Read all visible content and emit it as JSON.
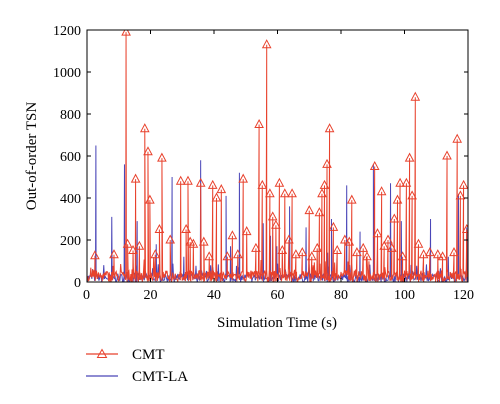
{
  "chart_data": {
    "type": "line",
    "xlabel": "Simulation Time (s)",
    "ylabel": "Out-of-order TSN",
    "xlim": [
      0,
      120
    ],
    "ylim": [
      0,
      1200
    ],
    "xticks": [
      0,
      20,
      40,
      60,
      80,
      100,
      120
    ],
    "yticks": [
      0,
      200,
      400,
      600,
      800,
      1000,
      1200
    ],
    "grid": false,
    "legend_position": "below-left",
    "series": [
      {
        "name": "CMT",
        "color": "#e8412c",
        "marker": "triangle-open",
        "spikes": [
          {
            "x": 2.5,
            "y": 125
          },
          {
            "x": 8.5,
            "y": 130
          },
          {
            "x": 12.3,
            "y": 1190
          },
          {
            "x": 12.8,
            "y": 180
          },
          {
            "x": 14.5,
            "y": 150
          },
          {
            "x": 15.3,
            "y": 490
          },
          {
            "x": 16.5,
            "y": 170
          },
          {
            "x": 18.2,
            "y": 730
          },
          {
            "x": 19.2,
            "y": 620
          },
          {
            "x": 19.8,
            "y": 390
          },
          {
            "x": 21.5,
            "y": 130
          },
          {
            "x": 22.8,
            "y": 250
          },
          {
            "x": 23.6,
            "y": 590
          },
          {
            "x": 26.2,
            "y": 200
          },
          {
            "x": 29.5,
            "y": 480
          },
          {
            "x": 31.2,
            "y": 250
          },
          {
            "x": 31.8,
            "y": 480
          },
          {
            "x": 32.5,
            "y": 190
          },
          {
            "x": 33.5,
            "y": 180
          },
          {
            "x": 35.8,
            "y": 470
          },
          {
            "x": 36.8,
            "y": 190
          },
          {
            "x": 38.5,
            "y": 120
          },
          {
            "x": 39.6,
            "y": 460
          },
          {
            "x": 40.8,
            "y": 400
          },
          {
            "x": 42.3,
            "y": 440
          },
          {
            "x": 44.2,
            "y": 120
          },
          {
            "x": 45.8,
            "y": 220
          },
          {
            "x": 47.5,
            "y": 130
          },
          {
            "x": 49.2,
            "y": 490
          },
          {
            "x": 50.3,
            "y": 240
          },
          {
            "x": 53.2,
            "y": 160
          },
          {
            "x": 54.2,
            "y": 750
          },
          {
            "x": 55.2,
            "y": 460
          },
          {
            "x": 56.6,
            "y": 1130
          },
          {
            "x": 57.6,
            "y": 420
          },
          {
            "x": 58.5,
            "y": 310
          },
          {
            "x": 59.5,
            "y": 270
          },
          {
            "x": 60.6,
            "y": 470
          },
          {
            "x": 61.5,
            "y": 150
          },
          {
            "x": 62.3,
            "y": 420
          },
          {
            "x": 63.6,
            "y": 200
          },
          {
            "x": 64.6,
            "y": 420
          },
          {
            "x": 65.8,
            "y": 130
          },
          {
            "x": 67.8,
            "y": 140
          },
          {
            "x": 70.0,
            "y": 340
          },
          {
            "x": 70.8,
            "y": 120
          },
          {
            "x": 72.5,
            "y": 160
          },
          {
            "x": 73.2,
            "y": 330
          },
          {
            "x": 74.0,
            "y": 420
          },
          {
            "x": 74.8,
            "y": 460
          },
          {
            "x": 75.6,
            "y": 560
          },
          {
            "x": 76.4,
            "y": 730
          },
          {
            "x": 77.6,
            "y": 260
          },
          {
            "x": 78.8,
            "y": 150
          },
          {
            "x": 81.2,
            "y": 200
          },
          {
            "x": 82.6,
            "y": 190
          },
          {
            "x": 83.4,
            "y": 390
          },
          {
            "x": 85.0,
            "y": 140
          },
          {
            "x": 87.0,
            "y": 160
          },
          {
            "x": 88.2,
            "y": 120
          },
          {
            "x": 90.6,
            "y": 550
          },
          {
            "x": 91.5,
            "y": 230
          },
          {
            "x": 92.8,
            "y": 430
          },
          {
            "x": 93.6,
            "y": 170
          },
          {
            "x": 94.8,
            "y": 200
          },
          {
            "x": 96.0,
            "y": 160
          },
          {
            "x": 96.8,
            "y": 300
          },
          {
            "x": 97.8,
            "y": 390
          },
          {
            "x": 98.6,
            "y": 470
          },
          {
            "x": 99.4,
            "y": 120
          },
          {
            "x": 100.6,
            "y": 470
          },
          {
            "x": 101.6,
            "y": 590
          },
          {
            "x": 102.4,
            "y": 410
          },
          {
            "x": 103.4,
            "y": 880
          },
          {
            "x": 104.4,
            "y": 180
          },
          {
            "x": 106.0,
            "y": 130
          },
          {
            "x": 108.0,
            "y": 140
          },
          {
            "x": 110.5,
            "y": 130
          },
          {
            "x": 112.0,
            "y": 120
          },
          {
            "x": 113.4,
            "y": 600
          },
          {
            "x": 115.6,
            "y": 140
          },
          {
            "x": 116.6,
            "y": 680
          },
          {
            "x": 117.6,
            "y": 410
          },
          {
            "x": 118.6,
            "y": 460
          },
          {
            "x": 119.6,
            "y": 250
          }
        ]
      },
      {
        "name": "CMT-LA",
        "color": "#4a46b8",
        "marker": "none",
        "spikes": [
          {
            "x": 2.8,
            "y": 650
          },
          {
            "x": 7.8,
            "y": 310
          },
          {
            "x": 11.8,
            "y": 560
          },
          {
            "x": 15.8,
            "y": 290
          },
          {
            "x": 21.8,
            "y": 180
          },
          {
            "x": 26.8,
            "y": 500
          },
          {
            "x": 30.5,
            "y": 120
          },
          {
            "x": 35.8,
            "y": 580
          },
          {
            "x": 43.8,
            "y": 410
          },
          {
            "x": 45.2,
            "y": 170
          },
          {
            "x": 48.0,
            "y": 520
          },
          {
            "x": 55.5,
            "y": 280
          },
          {
            "x": 57.8,
            "y": 220
          },
          {
            "x": 59.8,
            "y": 170
          },
          {
            "x": 63.8,
            "y": 360
          },
          {
            "x": 69.0,
            "y": 260
          },
          {
            "x": 75.8,
            "y": 140
          },
          {
            "x": 77.0,
            "y": 300
          },
          {
            "x": 81.8,
            "y": 460
          },
          {
            "x": 86.0,
            "y": 240
          },
          {
            "x": 90.2,
            "y": 560
          },
          {
            "x": 95.6,
            "y": 470
          },
          {
            "x": 99.0,
            "y": 290
          },
          {
            "x": 108.2,
            "y": 300
          },
          {
            "x": 113.8,
            "y": 120
          },
          {
            "x": 117.0,
            "y": 420
          },
          {
            "x": 119.6,
            "y": 260
          }
        ]
      }
    ]
  }
}
